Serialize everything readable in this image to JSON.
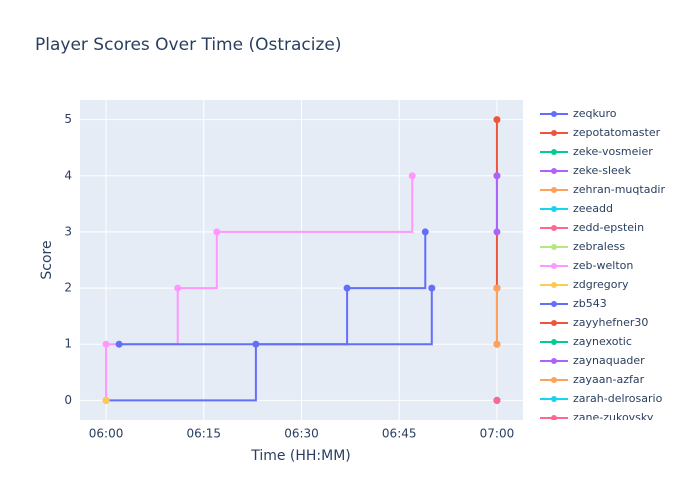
{
  "chart_data": {
    "type": "line",
    "step": "hv",
    "title": "Player Scores Over Time (Ostracize)",
    "x_label": "Time (HH:MM)",
    "y_label": "Score",
    "xlim": [
      "05:56",
      "07:04"
    ],
    "xticks": [
      "06:00",
      "06:15",
      "06:30",
      "06:45",
      "07:00"
    ],
    "ylim": [
      -0.35,
      5.35
    ],
    "yticks": [
      0,
      1,
      2,
      3,
      4,
      5
    ],
    "grid": true,
    "legend": "right",
    "series": [
      {
        "name": "zeqkuro",
        "color": "#636efa",
        "x": [
          "06:00",
          "06:23",
          "06:37",
          "06:49"
        ],
        "values": [
          0,
          1,
          2,
          3
        ]
      },
      {
        "name": "zepotatomaster",
        "color": "#EF553B",
        "x": [
          "07:00",
          "07:00",
          "07:00"
        ],
        "values": [
          1,
          2,
          5
        ]
      },
      {
        "name": "zeke-vosmeier",
        "color": "#00cc96",
        "x": [
          "07:00"
        ],
        "values": [
          0
        ]
      },
      {
        "name": "zeke-sleek",
        "color": "#ab63fa",
        "x": [
          "07:00",
          "07:00"
        ],
        "values": [
          3,
          4
        ]
      },
      {
        "name": "zehran-muqtadir",
        "color": "#FFA15A",
        "x": [
          "07:00"
        ],
        "values": [
          1
        ]
      },
      {
        "name": "zeeadd",
        "color": "#19d3f3",
        "x": [
          "07:00"
        ],
        "values": [
          0
        ]
      },
      {
        "name": "zedd-epstein",
        "color": "#FF6692",
        "x": [
          "07:00"
        ],
        "values": [
          0
        ]
      },
      {
        "name": "zebraless",
        "color": "#B6E880",
        "x": [
          "07:00"
        ],
        "values": [
          0
        ]
      },
      {
        "name": "zeb-welton",
        "color": "#FF97FF",
        "x": [
          "06:00",
          "06:00",
          "06:11",
          "06:17",
          "06:47"
        ],
        "values": [
          0,
          1,
          2,
          3,
          4
        ]
      },
      {
        "name": "zdgregory",
        "color": "#FECB52",
        "x": [
          "06:00"
        ],
        "values": [
          0
        ]
      },
      {
        "name": "zb543",
        "color": "#636efa",
        "x": [
          "06:02",
          "06:50"
        ],
        "values": [
          1,
          2
        ]
      },
      {
        "name": "zayyhefner30",
        "color": "#EF553B",
        "x": [
          "07:00"
        ],
        "values": [
          2
        ]
      },
      {
        "name": "zaynexotic",
        "color": "#00cc96",
        "x": [
          "07:00"
        ],
        "values": [
          0
        ]
      },
      {
        "name": "zaynaquader",
        "color": "#ab63fa",
        "x": [
          "07:00"
        ],
        "values": [
          4
        ]
      },
      {
        "name": "zayaan-azfar",
        "color": "#FFA15A",
        "x": [
          "07:00",
          "07:00"
        ],
        "values": [
          1,
          2
        ]
      },
      {
        "name": "zarah-delrosario",
        "color": "#19d3f3",
        "x": [
          "07:00"
        ],
        "values": [
          0
        ]
      },
      {
        "name": "zane-zukovsky",
        "color": "#FF6692",
        "x": [
          "07:00"
        ],
        "values": [
          0
        ]
      }
    ]
  }
}
